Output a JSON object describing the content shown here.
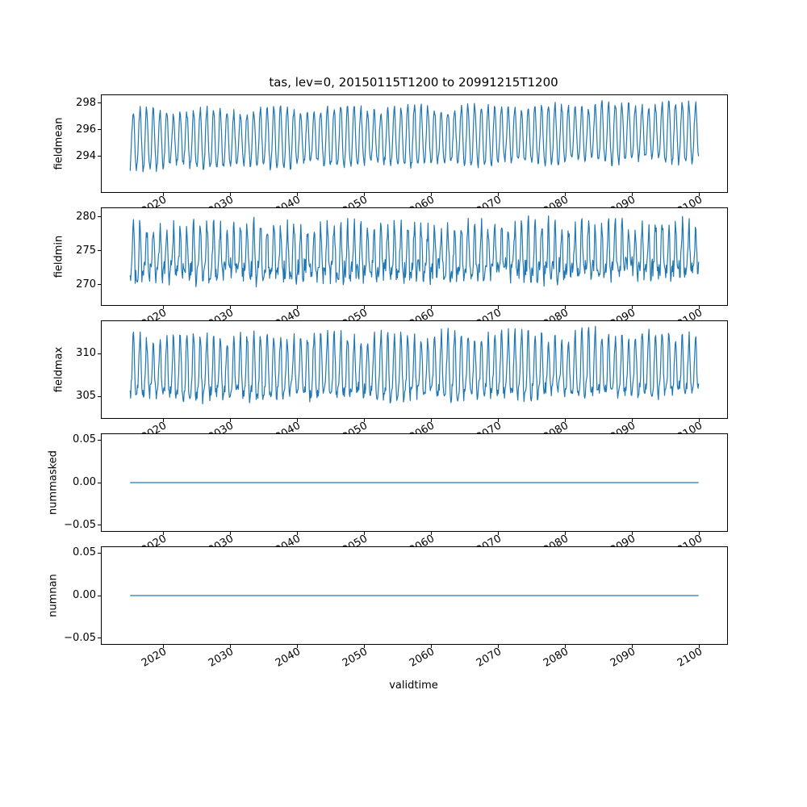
{
  "figure": {
    "title": "tas, lev=0, 20150115T1200 to 20991215T1200",
    "xlabel": "validtime",
    "line_color": "#1f77b4",
    "axes_color": "#000000",
    "background_color": "#ffffff"
  },
  "x_axis": {
    "label": "validtime",
    "lim": [
      2010.79,
      2104.21
    ],
    "ticks": [
      2020,
      2030,
      2040,
      2050,
      2060,
      2070,
      2080,
      2090,
      2100
    ],
    "tick_labels": [
      "2020",
      "2030",
      "2040",
      "2050",
      "2060",
      "2070",
      "2080",
      "2090",
      "2100"
    ],
    "tick_label_rotation_deg": 30,
    "data_start": 2015.04,
    "data_end": 2099.96
  },
  "chart_data": [
    {
      "type": "line",
      "name": "fieldmean",
      "ylabel": "fieldmean",
      "ylim": [
        291.3,
        298.6
      ],
      "yticks": [
        294,
        296,
        298
      ],
      "ytick_labels": [
        "294",
        "296",
        "298"
      ],
      "points_per_year": 12,
      "seasonal_cycle": {
        "base": 295.1,
        "trend": 0.6,
        "amplitude": 2.1,
        "amplitude2": 0.15,
        "noise": 0.3
      },
      "approx_value_range": [
        292.6,
        298.2
      ]
    },
    {
      "type": "line",
      "name": "fieldmin",
      "ylabel": "fieldmin",
      "ylim": [
        267.0,
        281.3
      ],
      "yticks": [
        270,
        275,
        280
      ],
      "ytick_labels": [
        "270",
        "275",
        "280"
      ],
      "points_per_year": 12,
      "seasonal_cycle": {
        "base": 273.8,
        "trend": 0.4,
        "amplitude": 3.2,
        "amplitude2": 1.5,
        "noise": 1.5
      },
      "approx_value_range": [
        266.8,
        280.7
      ]
    },
    {
      "type": "line",
      "name": "fieldmax",
      "ylabel": "fieldmax",
      "ylim": [
        302.45,
        313.8
      ],
      "yticks": [
        305,
        310
      ],
      "ytick_labels": [
        "305",
        "310"
      ],
      "points_per_year": 12,
      "seasonal_cycle": {
        "base": 307.6,
        "trend": 0.5,
        "amplitude": 3.3,
        "amplitude2": 1.0,
        "noise": 0.8
      },
      "approx_value_range": [
        303.0,
        313.4
      ]
    },
    {
      "type": "line",
      "name": "nummasked",
      "ylabel": "nummasked",
      "ylim": [
        -0.057,
        0.057
      ],
      "yticks": [
        -0.05,
        0.0,
        0.05
      ],
      "ytick_labels": [
        "−0.05",
        "0.00",
        "0.05"
      ],
      "constant": 0.0,
      "approx_value_range": [
        0.0,
        0.0
      ]
    },
    {
      "type": "line",
      "name": "numnan",
      "ylabel": "numnan",
      "ylim": [
        -0.057,
        0.057
      ],
      "yticks": [
        -0.05,
        0.0,
        0.05
      ],
      "ytick_labels": [
        "−0.05",
        "0.00",
        "0.05"
      ],
      "constant": 0.0,
      "approx_value_range": [
        0.0,
        0.0
      ]
    }
  ]
}
